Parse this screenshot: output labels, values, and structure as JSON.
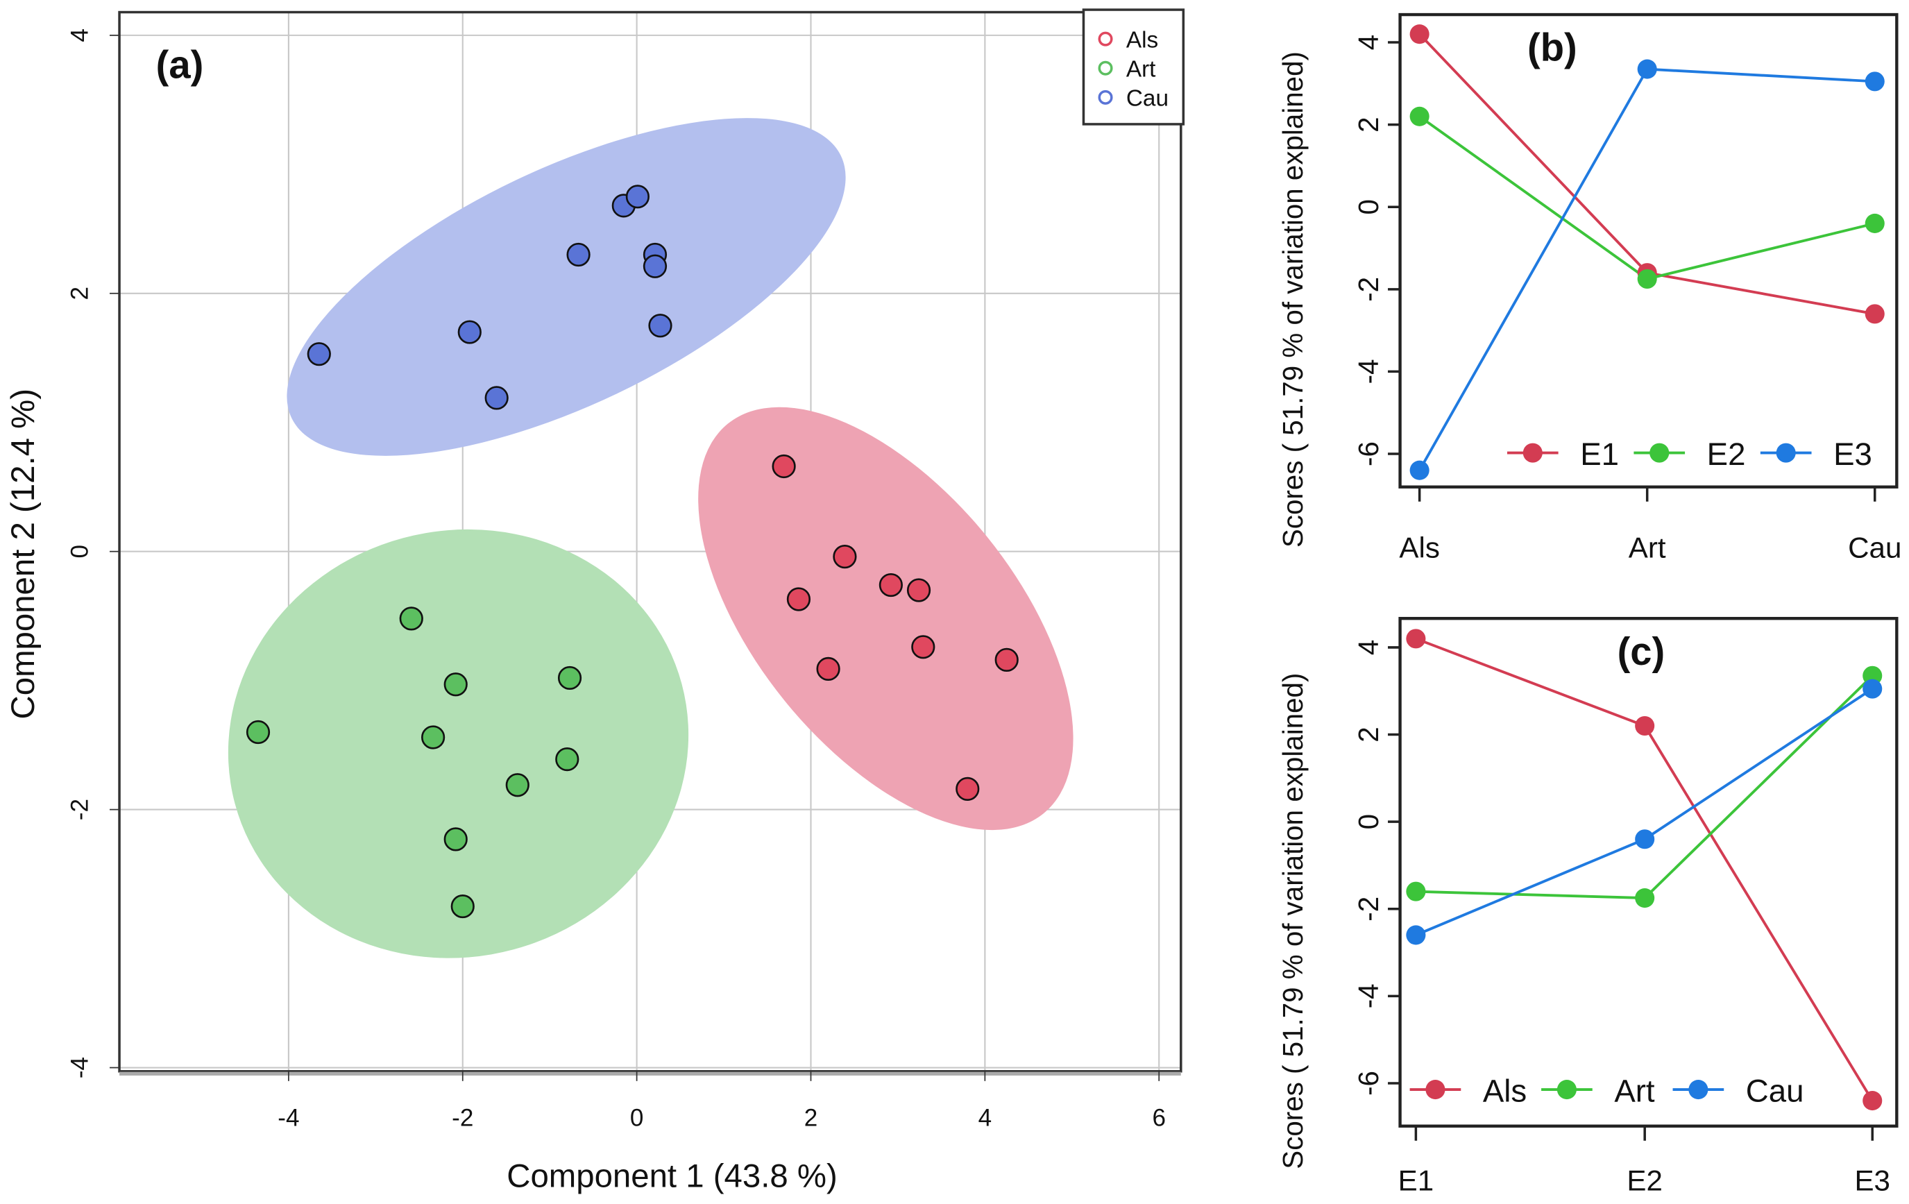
{
  "chart_data": [
    {
      "type": "scatter",
      "panel_label": "(a)",
      "xlabel": "Component 1 (43.8 %)",
      "ylabel": "Component 2 (12.4 %)",
      "xlim": [
        -6,
        6.2
      ],
      "ylim": [
        -4,
        4.2
      ],
      "xticks": [
        -4,
        -2,
        0,
        2,
        4,
        6
      ],
      "yticks": [
        -4,
        -2,
        0,
        2,
        4
      ],
      "grid": true,
      "legend": {
        "placement": "top-right",
        "entries": [
          "Als",
          "Art",
          "Cau"
        ]
      },
      "colors": {
        "Als": "#e0485f",
        "Art": "#5cbf60",
        "Cau": "#5a74d6"
      },
      "ellipse_colors": {
        "Als": "#eea3b3",
        "Art": "#b3e0b5",
        "Cau": "#b3bfee"
      },
      "series": [
        {
          "name": "Als",
          "ellipse_center": [
            2.86,
            -0.52
          ],
          "points": [
            [
              1.69,
              0.66
            ],
            [
              2.39,
              -0.04
            ],
            [
              1.86,
              -0.37
            ],
            [
              2.2,
              -0.91
            ],
            [
              2.92,
              -0.26
            ],
            [
              3.24,
              -0.3
            ],
            [
              3.29,
              -0.74
            ],
            [
              4.25,
              -0.84
            ],
            [
              3.8,
              -1.84
            ]
          ]
        },
        {
          "name": "Art",
          "ellipse_center": [
            -2.05,
            -1.49
          ],
          "points": [
            [
              -4.35,
              -1.4
            ],
            [
              -2.59,
              -0.52
            ],
            [
              -2.08,
              -1.03
            ],
            [
              -2.34,
              -1.44
            ],
            [
              -0.77,
              -0.98
            ],
            [
              -0.8,
              -1.61
            ],
            [
              -1.37,
              -1.81
            ],
            [
              -2.08,
              -2.23
            ],
            [
              -2.0,
              -2.75
            ]
          ]
        },
        {
          "name": "Cau",
          "ellipse_center": [
            -0.81,
            2.05
          ],
          "points": [
            [
              -3.65,
              1.53
            ],
            [
              -1.92,
              1.7
            ],
            [
              -1.61,
              1.19
            ],
            [
              -0.67,
              2.3
            ],
            [
              -0.15,
              2.68
            ],
            [
              0.01,
              2.75
            ],
            [
              0.21,
              2.3
            ],
            [
              0.21,
              2.21
            ],
            [
              0.27,
              1.75
            ]
          ]
        }
      ]
    },
    {
      "type": "line",
      "panel_label": "(b)",
      "ylabel": "Scores ( 51.79 % of variation explained)",
      "categories": [
        "Als",
        "Art",
        "Cau"
      ],
      "yticks": [
        4,
        2,
        0,
        -2,
        -4,
        -6
      ],
      "ylim": [
        -6.9,
        4.7
      ],
      "legend": {
        "placement": "bottom-right",
        "entries": [
          "E1",
          "E2",
          "E3"
        ]
      },
      "series": [
        {
          "name": "E1",
          "color": "#d33c52",
          "values": [
            4.2,
            -1.6,
            -2.6
          ]
        },
        {
          "name": "E2",
          "color": "#3cc43a",
          "values": [
            2.2,
            -1.75,
            -0.4
          ]
        },
        {
          "name": "E3",
          "color": "#1f7ae0",
          "values": [
            -6.4,
            3.35,
            3.05
          ]
        }
      ]
    },
    {
      "type": "line",
      "panel_label": "(c)",
      "ylabel": "Scores ( 51.79 % of variation explained)",
      "categories": [
        "E1",
        "E2",
        "E3"
      ],
      "yticks": [
        4,
        2,
        0,
        -2,
        -4,
        -6
      ],
      "ylim": [
        -6.9,
        4.7
      ],
      "legend": {
        "placement": "bottom-left",
        "entries": [
          "Als",
          "Art",
          "Cau"
        ]
      },
      "series": [
        {
          "name": "Als",
          "color": "#d33c52",
          "values": [
            4.2,
            2.2,
            -6.4
          ]
        },
        {
          "name": "Art",
          "color": "#3cc43a",
          "values": [
            -1.6,
            -1.75,
            3.35
          ]
        },
        {
          "name": "Cau",
          "color": "#1f7ae0",
          "values": [
            -2.6,
            -0.4,
            3.05
          ]
        }
      ]
    }
  ]
}
